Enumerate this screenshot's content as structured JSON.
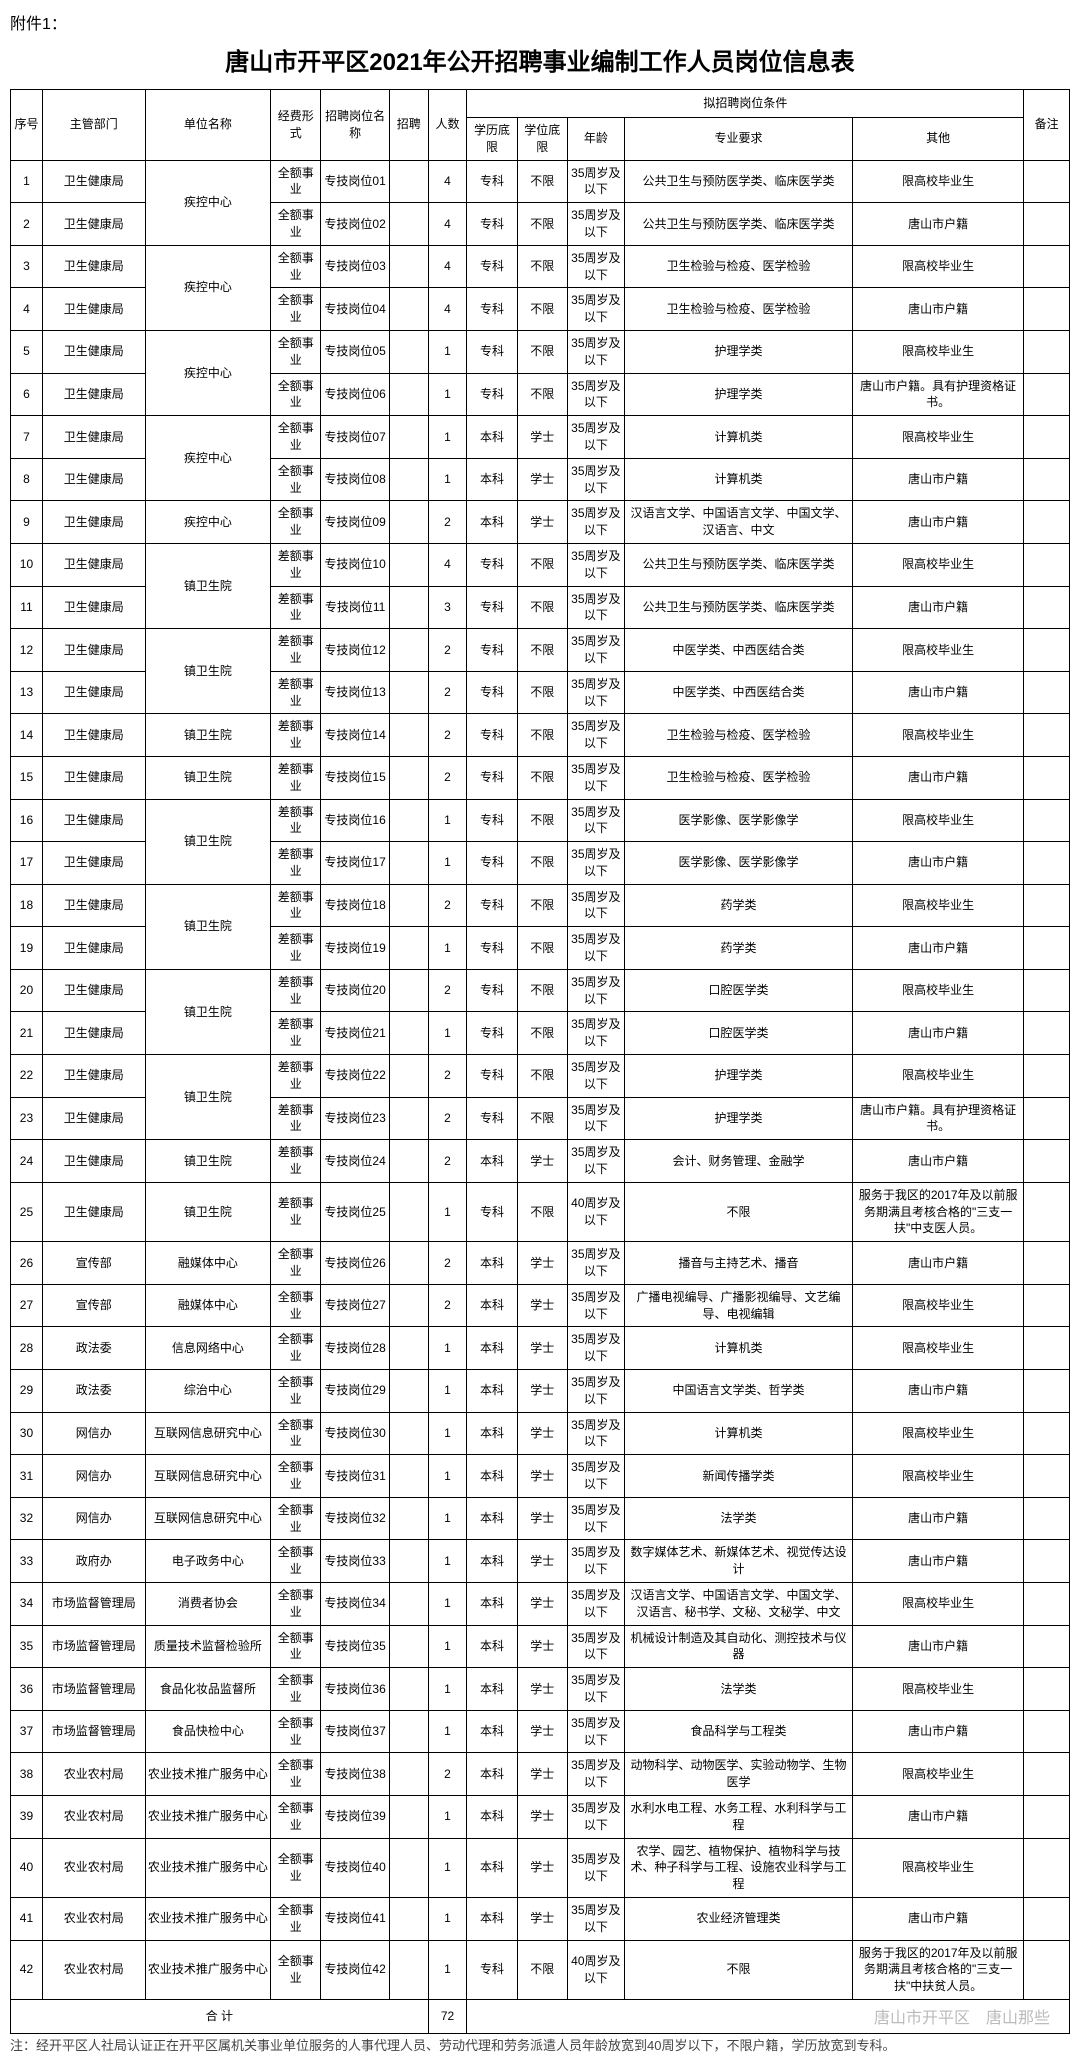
{
  "attachment_label": "附件1：",
  "title": "唐山市开平区2021年公开招聘事业编制工作人员岗位信息表",
  "header": {
    "seq": "序号",
    "dept": "主管部门",
    "unit": "单位名称",
    "fund": "经费形式",
    "pos_name": "招聘岗位名称",
    "recruit": "招聘",
    "count": "人数",
    "edu": "学历底限",
    "degree": "学位底限",
    "age": "年龄",
    "major": "专业要求",
    "other": "其他",
    "note": "备注",
    "cond_group": "拟招聘岗位条件"
  },
  "total_label": "合 计",
  "total_count": "72",
  "footnote": "注：经开平区人社局认证正在开平区属机关事业单位服务的人事代理人员、劳动代理和劳务派遣人员年龄放宽到40周岁以下，不限户籍，学历放宽到专科。",
  "watermark": "唐山市开平区　唐山那些",
  "rows": [
    {
      "seq": "1",
      "dept": "卫生健康局",
      "unit": "疾控中心",
      "unit_span": 2,
      "fund": "全额事业",
      "pos": "专技岗位01",
      "count": "4",
      "edu": "专科",
      "degree": "不限",
      "age": "35周岁及以下",
      "major": "公共卫生与预防医学类、临床医学类",
      "other": "限高校毕业生"
    },
    {
      "seq": "2",
      "dept": "卫生健康局",
      "fund": "全额事业",
      "pos": "专技岗位02",
      "count": "4",
      "edu": "专科",
      "degree": "不限",
      "age": "35周岁及以下",
      "major": "公共卫生与预防医学类、临床医学类",
      "other": "唐山市户籍"
    },
    {
      "seq": "3",
      "dept": "卫生健康局",
      "unit": "疾控中心",
      "unit_span": 2,
      "fund": "全额事业",
      "pos": "专技岗位03",
      "count": "4",
      "edu": "专科",
      "degree": "不限",
      "age": "35周岁及以下",
      "major": "卫生检验与检疫、医学检验",
      "other": "限高校毕业生"
    },
    {
      "seq": "4",
      "dept": "卫生健康局",
      "fund": "全额事业",
      "pos": "专技岗位04",
      "count": "4",
      "edu": "专科",
      "degree": "不限",
      "age": "35周岁及以下",
      "major": "卫生检验与检疫、医学检验",
      "other": "唐山市户籍"
    },
    {
      "seq": "5",
      "dept": "卫生健康局",
      "unit": "疾控中心",
      "unit_span": 2,
      "fund": "全额事业",
      "pos": "专技岗位05",
      "count": "1",
      "edu": "专科",
      "degree": "不限",
      "age": "35周岁及以下",
      "major": "护理学类",
      "other": "限高校毕业生"
    },
    {
      "seq": "6",
      "dept": "卫生健康局",
      "fund": "全额事业",
      "pos": "专技岗位06",
      "count": "1",
      "edu": "专科",
      "degree": "不限",
      "age": "35周岁及以下",
      "major": "护理学类",
      "other": "唐山市户籍。具有护理资格证书。"
    },
    {
      "seq": "7",
      "dept": "卫生健康局",
      "unit": "疾控中心",
      "unit_span": 2,
      "fund": "全额事业",
      "pos": "专技岗位07",
      "count": "1",
      "edu": "本科",
      "degree": "学士",
      "age": "35周岁及以下",
      "major": "计算机类",
      "other": "限高校毕业生"
    },
    {
      "seq": "8",
      "dept": "卫生健康局",
      "fund": "全额事业",
      "pos": "专技岗位08",
      "count": "1",
      "edu": "本科",
      "degree": "学士",
      "age": "35周岁及以下",
      "major": "计算机类",
      "other": "唐山市户籍"
    },
    {
      "seq": "9",
      "dept": "卫生健康局",
      "unit": "疾控中心",
      "unit_span": 1,
      "fund": "全额事业",
      "pos": "专技岗位09",
      "count": "2",
      "edu": "本科",
      "degree": "学士",
      "age": "35周岁及以下",
      "major": "汉语言文学、中国语言文学、中国文学、汉语言、中文",
      "other": "唐山市户籍"
    },
    {
      "seq": "10",
      "dept": "卫生健康局",
      "unit": "镇卫生院",
      "unit_span": 2,
      "fund": "差额事业",
      "pos": "专技岗位10",
      "count": "4",
      "edu": "专科",
      "degree": "不限",
      "age": "35周岁及以下",
      "major": "公共卫生与预防医学类、临床医学类",
      "other": "限高校毕业生"
    },
    {
      "seq": "11",
      "dept": "卫生健康局",
      "fund": "差额事业",
      "pos": "专技岗位11",
      "count": "3",
      "edu": "专科",
      "degree": "不限",
      "age": "35周岁及以下",
      "major": "公共卫生与预防医学类、临床医学类",
      "other": "唐山市户籍"
    },
    {
      "seq": "12",
      "dept": "卫生健康局",
      "unit": "镇卫生院",
      "unit_span": 2,
      "fund": "差额事业",
      "pos": "专技岗位12",
      "count": "2",
      "edu": "专科",
      "degree": "不限",
      "age": "35周岁及以下",
      "major": "中医学类、中西医结合类",
      "other": "限高校毕业生"
    },
    {
      "seq": "13",
      "dept": "卫生健康局",
      "fund": "差额事业",
      "pos": "专技岗位13",
      "count": "2",
      "edu": "专科",
      "degree": "不限",
      "age": "35周岁及以下",
      "major": "中医学类、中西医结合类",
      "other": "唐山市户籍"
    },
    {
      "seq": "14",
      "dept": "卫生健康局",
      "unit": "镇卫生院",
      "unit_span": 1,
      "fund": "差额事业",
      "pos": "专技岗位14",
      "count": "2",
      "edu": "专科",
      "degree": "不限",
      "age": "35周岁及以下",
      "major": "卫生检验与检疫、医学检验",
      "other": "限高校毕业生"
    },
    {
      "seq": "15",
      "dept": "卫生健康局",
      "unit": "镇卫生院",
      "unit_span": 1,
      "fund": "差额事业",
      "pos": "专技岗位15",
      "count": "2",
      "edu": "专科",
      "degree": "不限",
      "age": "35周岁及以下",
      "major": "卫生检验与检疫、医学检验",
      "other": "唐山市户籍"
    },
    {
      "seq": "16",
      "dept": "卫生健康局",
      "unit": "镇卫生院",
      "unit_span": 2,
      "fund": "差额事业",
      "pos": "专技岗位16",
      "count": "1",
      "edu": "专科",
      "degree": "不限",
      "age": "35周岁及以下",
      "major": "医学影像、医学影像学",
      "other": "限高校毕业生"
    },
    {
      "seq": "17",
      "dept": "卫生健康局",
      "fund": "差额事业",
      "pos": "专技岗位17",
      "count": "1",
      "edu": "专科",
      "degree": "不限",
      "age": "35周岁及以下",
      "major": "医学影像、医学影像学",
      "other": "唐山市户籍"
    },
    {
      "seq": "18",
      "dept": "卫生健康局",
      "unit": "镇卫生院",
      "unit_span": 2,
      "fund": "差额事业",
      "pos": "专技岗位18",
      "count": "2",
      "edu": "专科",
      "degree": "不限",
      "age": "35周岁及以下",
      "major": "药学类",
      "other": "限高校毕业生"
    },
    {
      "seq": "19",
      "dept": "卫生健康局",
      "fund": "差额事业",
      "pos": "专技岗位19",
      "count": "1",
      "edu": "专科",
      "degree": "不限",
      "age": "35周岁及以下",
      "major": "药学类",
      "other": "唐山市户籍"
    },
    {
      "seq": "20",
      "dept": "卫生健康局",
      "unit": "镇卫生院",
      "unit_span": 2,
      "fund": "差额事业",
      "pos": "专技岗位20",
      "count": "2",
      "edu": "专科",
      "degree": "不限",
      "age": "35周岁及以下",
      "major": "口腔医学类",
      "other": "限高校毕业生"
    },
    {
      "seq": "21",
      "dept": "卫生健康局",
      "fund": "差额事业",
      "pos": "专技岗位21",
      "count": "1",
      "edu": "专科",
      "degree": "不限",
      "age": "35周岁及以下",
      "major": "口腔医学类",
      "other": "唐山市户籍"
    },
    {
      "seq": "22",
      "dept": "卫生健康局",
      "unit": "镇卫生院",
      "unit_span": 2,
      "fund": "差额事业",
      "pos": "专技岗位22",
      "count": "2",
      "edu": "专科",
      "degree": "不限",
      "age": "35周岁及以下",
      "major": "护理学类",
      "other": "限高校毕业生"
    },
    {
      "seq": "23",
      "dept": "卫生健康局",
      "fund": "差额事业",
      "pos": "专技岗位23",
      "count": "2",
      "edu": "专科",
      "degree": "不限",
      "age": "35周岁及以下",
      "major": "护理学类",
      "other": "唐山市户籍。具有护理资格证书。"
    },
    {
      "seq": "24",
      "dept": "卫生健康局",
      "unit": "镇卫生院",
      "unit_span": 1,
      "fund": "差额事业",
      "pos": "专技岗位24",
      "count": "2",
      "edu": "本科",
      "degree": "学士",
      "age": "35周岁及以下",
      "major": "会计、财务管理、金融学",
      "other": "唐山市户籍"
    },
    {
      "seq": "25",
      "dept": "卫生健康局",
      "unit": "镇卫生院",
      "unit_span": 1,
      "fund": "差额事业",
      "pos": "专技岗位25",
      "count": "1",
      "edu": "专科",
      "degree": "不限",
      "age": "40周岁及以下",
      "major": "不限",
      "other": "服务于我区的2017年及以前服务期满且考核合格的\"三支一扶\"中支医人员。"
    },
    {
      "seq": "26",
      "dept": "宣传部",
      "unit": "融媒体中心",
      "unit_span": 1,
      "fund": "全额事业",
      "pos": "专技岗位26",
      "count": "2",
      "edu": "本科",
      "degree": "学士",
      "age": "35周岁及以下",
      "major": "播音与主持艺术、播音",
      "other": "唐山市户籍"
    },
    {
      "seq": "27",
      "dept": "宣传部",
      "unit": "融媒体中心",
      "unit_span": 1,
      "fund": "全额事业",
      "pos": "专技岗位27",
      "count": "2",
      "edu": "本科",
      "degree": "学士",
      "age": "35周岁及以下",
      "major": "广播电视编导、广播影视编导、文艺编导、电视编辑",
      "other": "限高校毕业生"
    },
    {
      "seq": "28",
      "dept": "政法委",
      "unit": "信息网络中心",
      "unit_span": 1,
      "fund": "全额事业",
      "pos": "专技岗位28",
      "count": "1",
      "edu": "本科",
      "degree": "学士",
      "age": "35周岁及以下",
      "major": "计算机类",
      "other": "限高校毕业生"
    },
    {
      "seq": "29",
      "dept": "政法委",
      "unit": "综治中心",
      "unit_span": 1,
      "fund": "全额事业",
      "pos": "专技岗位29",
      "count": "1",
      "edu": "本科",
      "degree": "学士",
      "age": "35周岁及以下",
      "major": "中国语言文学类、哲学类",
      "other": "唐山市户籍"
    },
    {
      "seq": "30",
      "dept": "网信办",
      "unit": "互联网信息研究中心",
      "unit_span": 1,
      "fund": "全额事业",
      "pos": "专技岗位30",
      "count": "1",
      "edu": "本科",
      "degree": "学士",
      "age": "35周岁及以下",
      "major": "计算机类",
      "other": "限高校毕业生"
    },
    {
      "seq": "31",
      "dept": "网信办",
      "unit": "互联网信息研究中心",
      "unit_span": 1,
      "fund": "全额事业",
      "pos": "专技岗位31",
      "count": "1",
      "edu": "本科",
      "degree": "学士",
      "age": "35周岁及以下",
      "major": "新闻传播学类",
      "other": "限高校毕业生"
    },
    {
      "seq": "32",
      "dept": "网信办",
      "unit": "互联网信息研究中心",
      "unit_span": 1,
      "fund": "全额事业",
      "pos": "专技岗位32",
      "count": "1",
      "edu": "本科",
      "degree": "学士",
      "age": "35周岁及以下",
      "major": "法学类",
      "other": "唐山市户籍"
    },
    {
      "seq": "33",
      "dept": "政府办",
      "unit": "电子政务中心",
      "unit_span": 1,
      "fund": "全额事业",
      "pos": "专技岗位33",
      "count": "1",
      "edu": "本科",
      "degree": "学士",
      "age": "35周岁及以下",
      "major": "数字媒体艺术、新媒体艺术、视觉传达设计",
      "other": "唐山市户籍"
    },
    {
      "seq": "34",
      "dept": "市场监督管理局",
      "unit": "消费者协会",
      "unit_span": 1,
      "fund": "全额事业",
      "pos": "专技岗位34",
      "count": "1",
      "edu": "本科",
      "degree": "学士",
      "age": "35周岁及以下",
      "major": "汉语言文学、中国语言文学、中国文学、汉语言、秘书学、文秘、文秘学、中文",
      "other": "限高校毕业生"
    },
    {
      "seq": "35",
      "dept": "市场监督管理局",
      "unit": "质量技术监督检验所",
      "unit_span": 1,
      "fund": "全额事业",
      "pos": "专技岗位35",
      "count": "1",
      "edu": "本科",
      "degree": "学士",
      "age": "35周岁及以下",
      "major": "机械设计制造及其自动化、测控技术与仪器",
      "other": "唐山市户籍"
    },
    {
      "seq": "36",
      "dept": "市场监督管理局",
      "unit": "食品化妆品监督所",
      "unit_span": 1,
      "fund": "全额事业",
      "pos": "专技岗位36",
      "count": "1",
      "edu": "本科",
      "degree": "学士",
      "age": "35周岁及以下",
      "major": "法学类",
      "other": "限高校毕业生"
    },
    {
      "seq": "37",
      "dept": "市场监督管理局",
      "unit": "食品快检中心",
      "unit_span": 1,
      "fund": "全额事业",
      "pos": "专技岗位37",
      "count": "1",
      "edu": "本科",
      "degree": "学士",
      "age": "35周岁及以下",
      "major": "食品科学与工程类",
      "other": "唐山市户籍"
    },
    {
      "seq": "38",
      "dept": "农业农村局",
      "unit": "农业技术推广服务中心",
      "unit_span": 1,
      "fund": "全额事业",
      "pos": "专技岗位38",
      "count": "2",
      "edu": "本科",
      "degree": "学士",
      "age": "35周岁及以下",
      "major": "动物科学、动物医学、实验动物学、生物医学",
      "other": "限高校毕业生"
    },
    {
      "seq": "39",
      "dept": "农业农村局",
      "unit": "农业技术推广服务中心",
      "unit_span": 1,
      "fund": "全额事业",
      "pos": "专技岗位39",
      "count": "1",
      "edu": "本科",
      "degree": "学士",
      "age": "35周岁及以下",
      "major": "水利水电工程、水务工程、水利科学与工程",
      "other": "唐山市户籍"
    },
    {
      "seq": "40",
      "dept": "农业农村局",
      "unit": "农业技术推广服务中心",
      "unit_span": 1,
      "fund": "全额事业",
      "pos": "专技岗位40",
      "count": "1",
      "edu": "本科",
      "degree": "学士",
      "age": "35周岁及以下",
      "major": "农学、园艺、植物保护、植物科学与技术、种子科学与工程、设施农业科学与工程",
      "other": "限高校毕业生"
    },
    {
      "seq": "41",
      "dept": "农业农村局",
      "unit": "农业技术推广服务中心",
      "unit_span": 1,
      "fund": "全额事业",
      "pos": "专技岗位41",
      "count": "1",
      "edu": "本科",
      "degree": "学士",
      "age": "35周岁及以下",
      "major": "农业经济管理类",
      "other": "唐山市户籍"
    },
    {
      "seq": "42",
      "dept": "农业农村局",
      "unit": "农业技术推广服务中心",
      "unit_span": 1,
      "fund": "全额事业",
      "pos": "专技岗位42",
      "count": "1",
      "edu": "专科",
      "degree": "不限",
      "age": "40周岁及以下",
      "major": "不限",
      "other": "服务于我区的2017年及以前服务期满且考核合格的\"三支一扶\"中扶贫人员。"
    }
  ]
}
